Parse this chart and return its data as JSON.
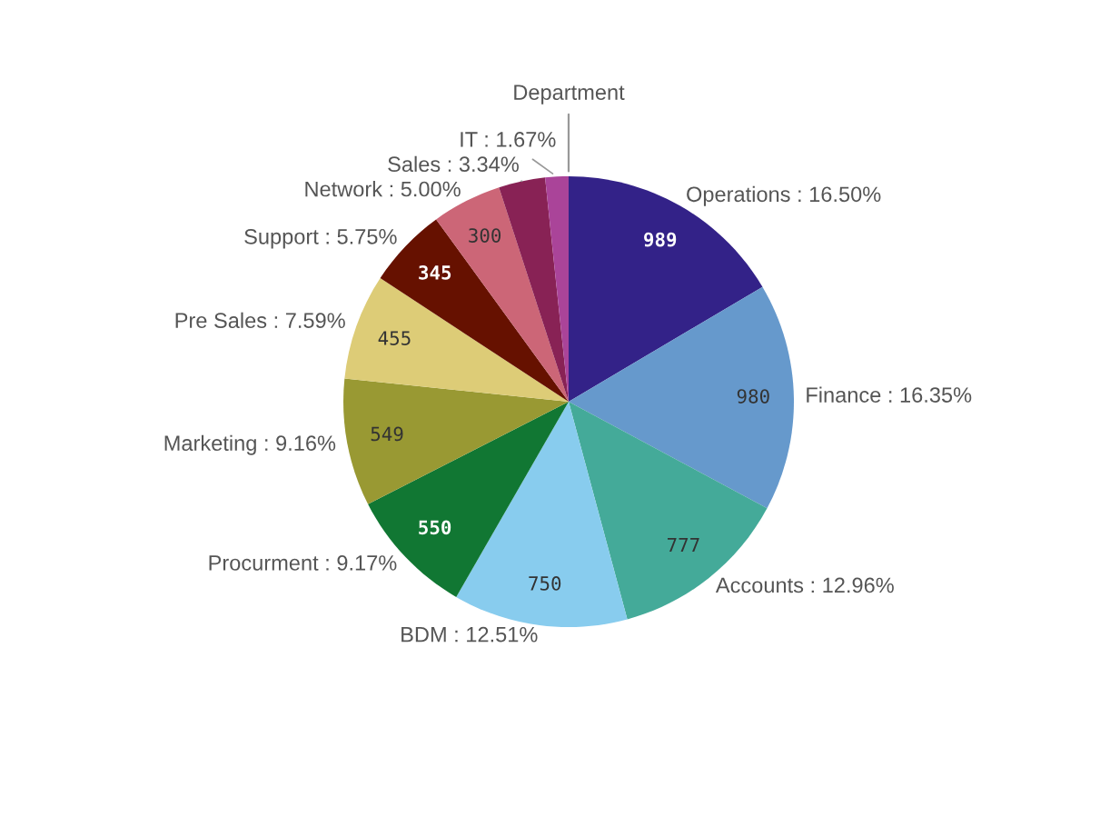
{
  "chart_data": {
    "type": "pie",
    "title": "Department",
    "categories": [
      "Operations : 16.50%",
      "Finance : 16.35%",
      "Accounts : 12.96%",
      "BDM : 12.51%",
      "Procurment : 9.17%",
      "Marketing : 9.16%",
      "Pre Sales : 7.59%",
      "Support : 5.75%",
      "Network : 5.00%",
      "Sales : 3.34%",
      "IT : 1.67%"
    ],
    "values": [
      989,
      980,
      777,
      750,
      550,
      549,
      455,
      345,
      300,
      200,
      100
    ],
    "value_labels": [
      "989",
      "980",
      "777",
      "750",
      "550",
      "549",
      "455",
      "345",
      "300",
      null,
      null
    ],
    "colors": [
      "#332288",
      "#6699cc",
      "#44aa99",
      "#88ccee",
      "#117733",
      "#999933",
      "#ddcc77",
      "#661100",
      "#cc6677",
      "#882255",
      "#aa4499"
    ]
  }
}
